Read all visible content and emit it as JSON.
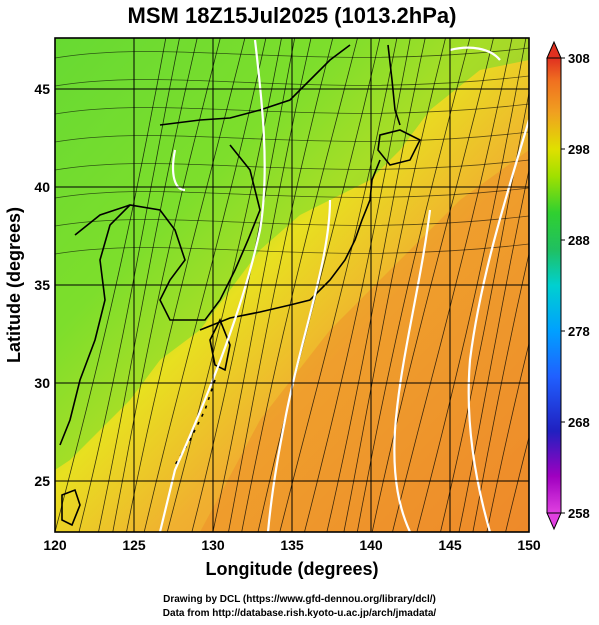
{
  "title": "MSM 18Z15Jul2025 (1013.2hPa)",
  "xlabel": "Longitude (degrees)",
  "ylabel": "Latitude  (degrees)",
  "x_ticks": [
    "120",
    "125",
    "130",
    "135",
    "140",
    "145",
    "150"
  ],
  "y_ticks": [
    "25",
    "30",
    "35",
    "40",
    "45"
  ],
  "x_range": [
    120,
    150
  ],
  "y_range": [
    22.4,
    47.6
  ],
  "colorbar": {
    "ticks": [
      "308",
      "298",
      "288",
      "278",
      "268",
      "258"
    ],
    "range": [
      258,
      308
    ],
    "colors": [
      "#e040e0",
      "#a000c0",
      "#2020c0",
      "#2060ff",
      "#00a0ff",
      "#00d0d0",
      "#20c060",
      "#30d030",
      "#a0e000",
      "#e0e000",
      "#f0a020",
      "#f07020",
      "#e03020"
    ]
  },
  "credits": [
    "Drawing by DCL (https://www.gfd-dennou.org/library/dcl/)",
    "Data from http://database.rish.kyoto-u.ac.jp/arch/jmadata/"
  ],
  "colors": {
    "land_green": "#6fdc2e",
    "sea_orange": "#f0a030",
    "coast": "#000000",
    "contour": "#ffffff",
    "stream": "#000000"
  }
}
